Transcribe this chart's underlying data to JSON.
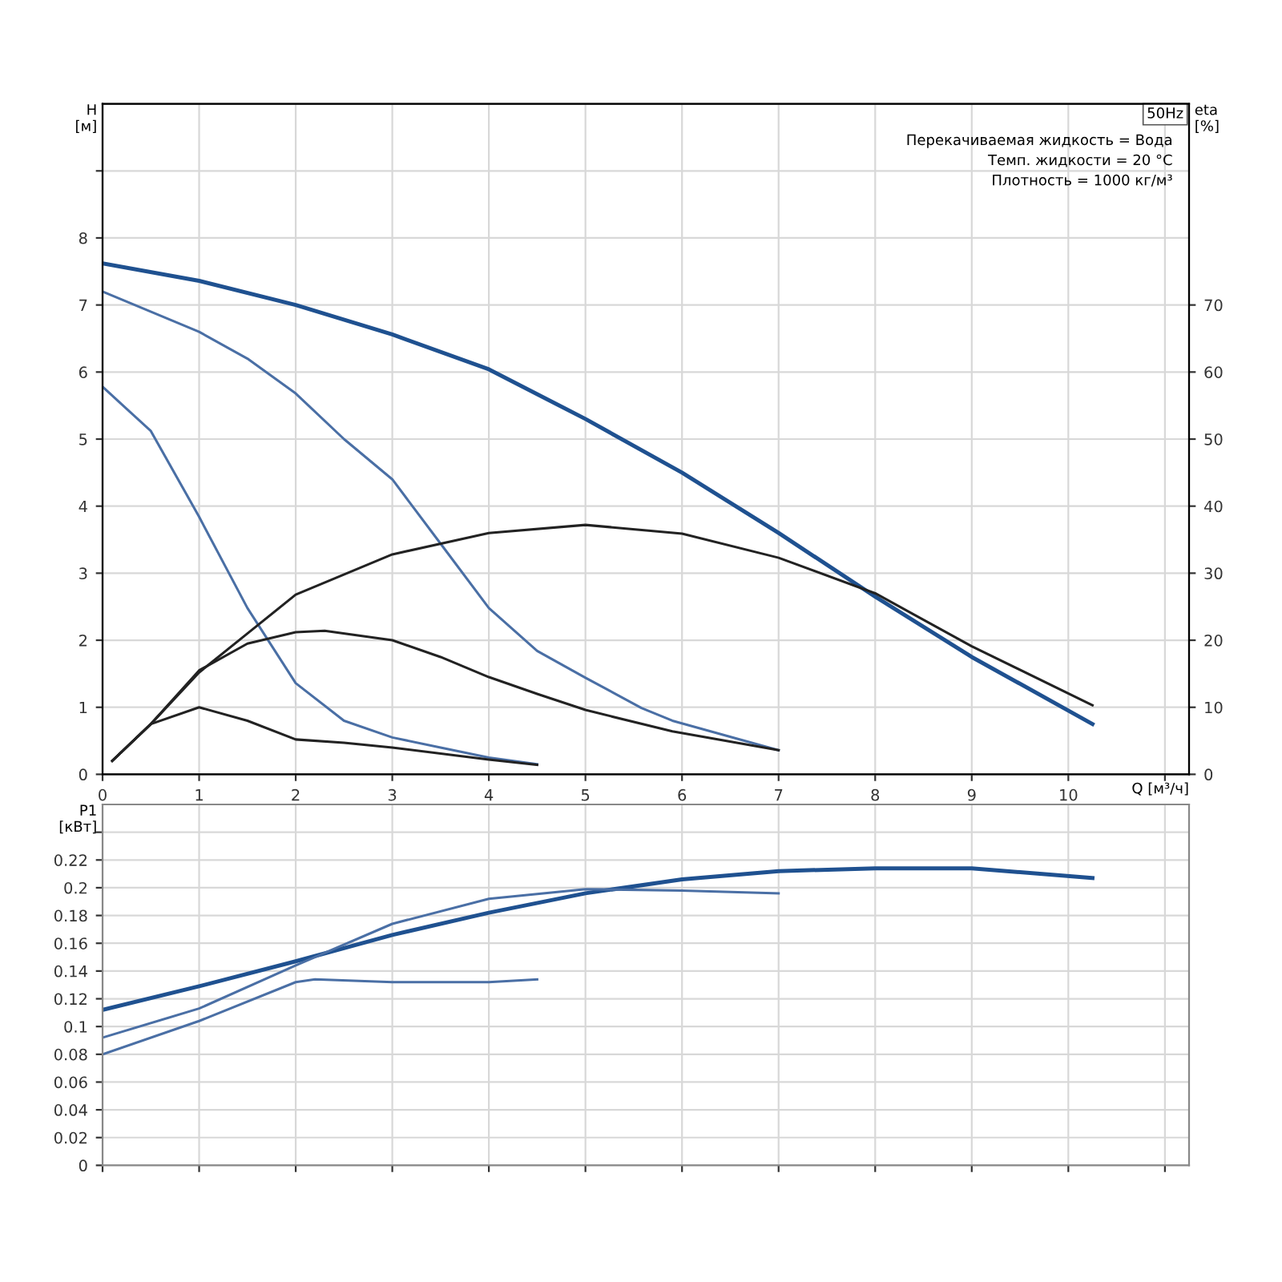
{
  "chart_data": [
    {
      "type": "line",
      "xlabel": "Q [м³/ч]",
      "ylabel": "H [м]",
      "y2label": "eta [%]",
      "xlim": [
        0,
        11.25
      ],
      "xticks": [
        0,
        1,
        2,
        3,
        4,
        5,
        6,
        7,
        8,
        9,
        10,
        {
          "value": 11,
          "label": null
        }
      ],
      "ylim": [
        0,
        10
      ],
      "yticks": [
        0,
        1,
        2,
        3,
        4,
        5,
        6,
        7,
        8,
        {
          "value": 9,
          "label": null
        }
      ],
      "y2lim": [
        0,
        100
      ],
      "y2ticks": [
        0,
        10,
        20,
        30,
        40,
        50,
        60,
        70
      ],
      "grid": true,
      "marker": "none",
      "line_style": "solid",
      "annotations": [
        "50Hz",
        "Перекачиваемая жидкость = Вода",
        "Темп. жидкости = 20 °C",
        "Плотность = 1000 кг/м³"
      ],
      "series": [
        {
          "color": "#1f5190",
          "x": [
            0,
            1,
            2,
            3,
            4,
            5,
            6,
            7,
            8,
            9,
            10.25
          ],
          "values": [
            7.62,
            7.36,
            7.0,
            6.56,
            6.04,
            5.3,
            4.5,
            3.6,
            2.65,
            1.75,
            0.75
          ]
        },
        {
          "color": "#4a6fa5",
          "x": [
            0,
            1,
            1.5,
            2,
            2.5,
            3,
            3.5,
            4,
            4.5,
            5,
            5.58,
            5.9,
            7
          ],
          "values": [
            7.2,
            6.6,
            6.2,
            5.68,
            5.0,
            4.4,
            3.44,
            2.48,
            1.84,
            1.44,
            0.99,
            0.8,
            0.36
          ]
        },
        {
          "color": "#4a6fa5",
          "x": [
            0,
            0.5,
            1,
            1.5,
            2,
            2.5,
            3,
            3.5,
            4,
            4.5
          ],
          "values": [
            5.78,
            5.12,
            3.84,
            2.48,
            1.36,
            0.8,
            0.55,
            0.4,
            0.25,
            0.15
          ]
        },
        {
          "color": "#222222",
          "axis": "y2",
          "x": [
            0.1,
            0.5,
            1,
            1.5,
            2,
            3,
            4,
            5,
            6,
            7,
            8,
            9,
            10.25
          ],
          "values": [
            2,
            7.5,
            15.2,
            21,
            26.8,
            32.8,
            36,
            37.2,
            35.9,
            32.3,
            27,
            19.1,
            10.3
          ]
        },
        {
          "color": "#222222",
          "axis": "y2",
          "x": [
            0.1,
            0.5,
            1,
            1.5,
            2,
            2.3,
            3,
            3.5,
            4,
            4.5,
            5,
            5.9,
            7
          ],
          "values": [
            2,
            7.5,
            15.5,
            19.5,
            21.2,
            21.4,
            20,
            17.5,
            14.5,
            12,
            9.6,
            6.4,
            3.6
          ]
        },
        {
          "color": "#222222",
          "axis": "y2",
          "x": [
            0.1,
            0.5,
            1,
            1.5,
            2,
            2.5,
            3,
            4,
            4.5
          ],
          "values": [
            2,
            7.5,
            10,
            8,
            5.2,
            4.7,
            4,
            2.2,
            1.4
          ]
        }
      ]
    },
    {
      "type": "line",
      "ylabel": "P1 [кВт]",
      "tick_labels": "y",
      "xlim": [
        0,
        11.25
      ],
      "xticks": [
        0,
        1,
        2,
        3,
        4,
        5,
        6,
        7,
        8,
        9,
        10,
        11
      ],
      "ylim": [
        0,
        0.26
      ],
      "yticks": [
        0,
        0.02,
        0.04,
        0.06,
        0.08,
        0.1,
        0.12,
        0.14,
        0.16,
        0.18,
        0.2,
        0.22,
        {
          "value": 0.24,
          "label": null
        }
      ],
      "grid": true,
      "marker": "none",
      "line_style": "solid",
      "series": [
        {
          "color": "#1f5190",
          "x": [
            0,
            1,
            2,
            3,
            4,
            5,
            6,
            7,
            8,
            9,
            10.25
          ],
          "values": [
            0.112,
            0.129,
            0.147,
            0.166,
            0.182,
            0.196,
            0.206,
            0.212,
            0.214,
            0.214,
            0.207
          ]
        },
        {
          "color": "#4a6fa5",
          "x": [
            0,
            1,
            2,
            3,
            4,
            5,
            6,
            7
          ],
          "values": [
            0.092,
            0.113,
            0.144,
            0.174,
            0.192,
            0.199,
            0.198,
            0.196
          ]
        },
        {
          "color": "#4a6fa5",
          "x": [
            0,
            1,
            2,
            2.2,
            3,
            4,
            4.5
          ],
          "values": [
            0.08,
            0.104,
            0.132,
            0.134,
            0.132,
            0.132,
            0.134
          ]
        }
      ]
    }
  ]
}
